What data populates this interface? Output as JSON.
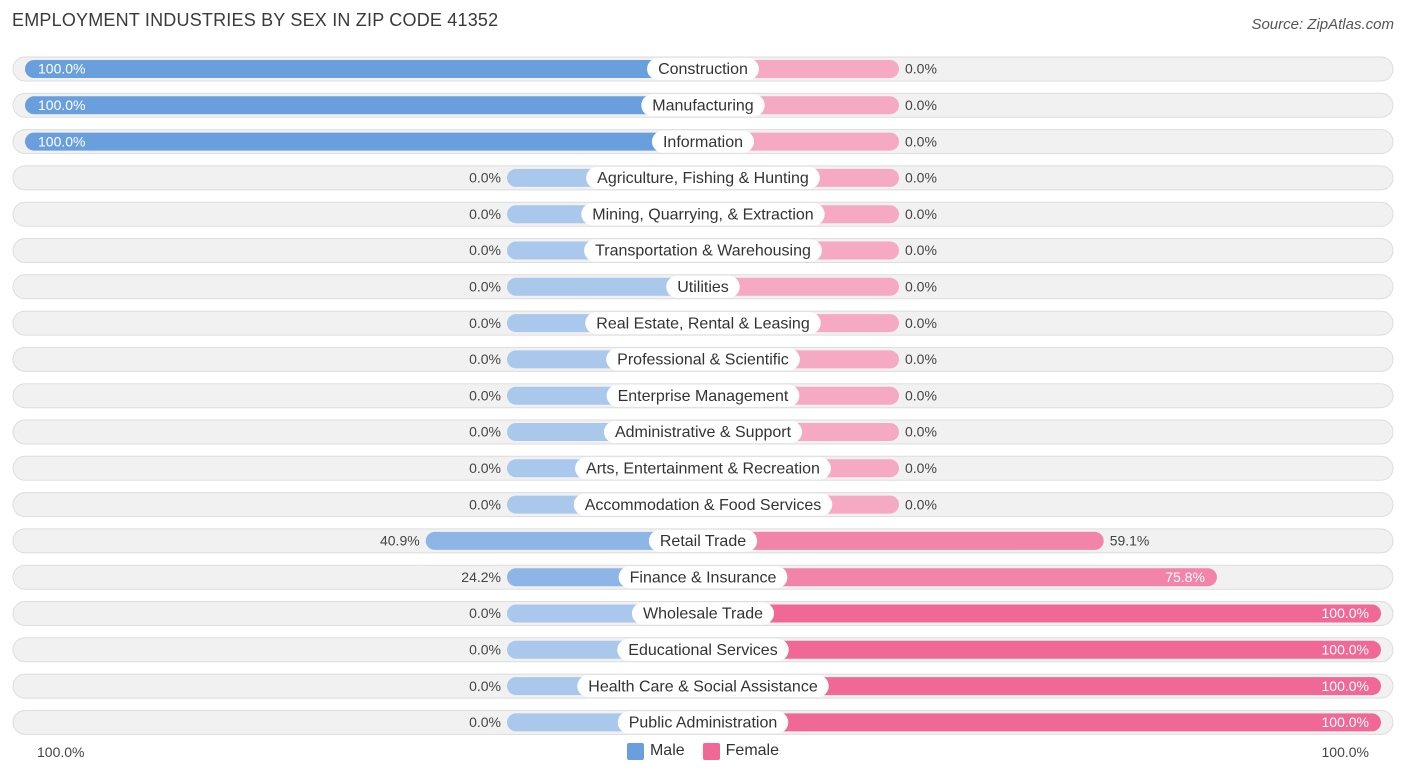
{
  "title": "EMPLOYMENT INDUSTRIES BY SEX IN ZIP CODE 41352",
  "source": "Source: ZipAtlas.com",
  "axis": {
    "left_label": "100.0%",
    "right_label": "100.0%"
  },
  "legend": {
    "male_label": "Male",
    "female_label": "Female"
  },
  "colors": {
    "male_strong": "#6a9fde",
    "male_light": "#a9c8ec",
    "female_strong": "#f06895",
    "female_light": "#f6a9c2",
    "row_background": "#f1f1f1",
    "row_border": "#dddddd"
  },
  "chart_data": {
    "type": "bar",
    "orientation": "horizontal-diverging",
    "xlim": [
      -100,
      100
    ],
    "unit": "%",
    "categories": [
      "Construction",
      "Manufacturing",
      "Information",
      "Agriculture, Fishing & Hunting",
      "Mining, Quarrying, & Extraction",
      "Transportation & Warehousing",
      "Utilities",
      "Real Estate, Rental & Leasing",
      "Professional & Scientific",
      "Enterprise Management",
      "Administrative & Support",
      "Arts, Entertainment & Recreation",
      "Accommodation & Food Services",
      "Retail Trade",
      "Finance & Insurance",
      "Wholesale Trade",
      "Educational Services",
      "Health Care & Social Assistance",
      "Public Administration"
    ],
    "series": [
      {
        "name": "Male",
        "values": [
          100,
          100,
          100,
          0,
          0,
          0,
          0,
          0,
          0,
          0,
          0,
          0,
          0,
          40.9,
          24.2,
          0,
          0,
          0,
          0
        ],
        "labels": [
          "100.0%",
          "100.0%",
          "100.0%",
          "0.0%",
          "0.0%",
          "0.0%",
          "0.0%",
          "0.0%",
          "0.0%",
          "0.0%",
          "0.0%",
          "0.0%",
          "0.0%",
          "40.9%",
          "24.2%",
          "0.0%",
          "0.0%",
          "0.0%",
          "0.0%"
        ]
      },
      {
        "name": "Female",
        "values": [
          0,
          0,
          0,
          0,
          0,
          0,
          0,
          0,
          0,
          0,
          0,
          0,
          0,
          59.1,
          75.8,
          100,
          100,
          100,
          100
        ],
        "labels": [
          "0.0%",
          "0.0%",
          "0.0%",
          "0.0%",
          "0.0%",
          "0.0%",
          "0.0%",
          "0.0%",
          "0.0%",
          "0.0%",
          "0.0%",
          "0.0%",
          "0.0%",
          "59.1%",
          "75.8%",
          "100.0%",
          "100.0%",
          "100.0%",
          "100.0%"
        ]
      }
    ],
    "legend_position": "bottom-center",
    "grid": false
  }
}
